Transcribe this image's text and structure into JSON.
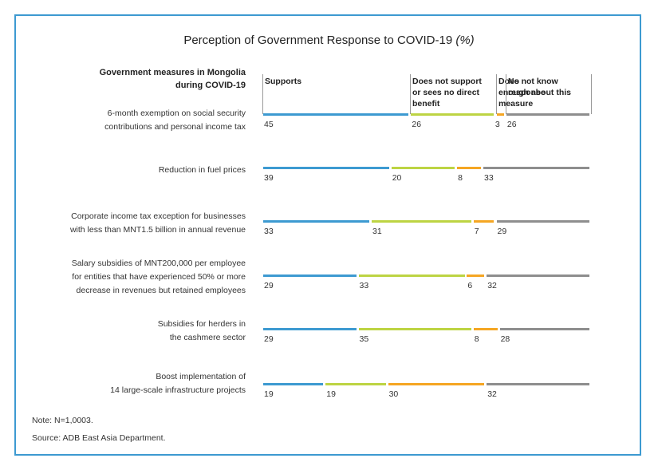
{
  "chart_data": {
    "type": "bar",
    "stacked": true,
    "orientation": "horizontal",
    "title": "Perception of Government Response to COVID-19",
    "title_unit": "(%)",
    "row_header": "Government measures in Mongolia during COVID-19",
    "series": [
      {
        "name": "Supports",
        "color": "#3d9ad1",
        "values": [
          45,
          39,
          33,
          29,
          29,
          19
        ]
      },
      {
        "name": "Does not support or sees no direct benefit",
        "color": "#bdd443",
        "values": [
          26,
          20,
          31,
          33,
          35,
          19
        ]
      },
      {
        "name": "Does not know enough about this measure",
        "color": "#f5a623",
        "values": [
          3,
          8,
          7,
          6,
          8,
          30
        ]
      },
      {
        "name": "No response",
        "color": "#8e8e8e",
        "values": [
          26,
          33,
          29,
          32,
          28,
          32
        ]
      }
    ],
    "column_header_lines": [
      [
        "Supports"
      ],
      [
        "Does not support",
        "or sees no direct",
        "benefit"
      ],
      [
        "Does not know",
        "enough about this",
        "measure"
      ],
      [
        "No",
        "response"
      ]
    ],
    "categories": [
      [
        "6-month exemption on social security",
        "contributions and personal income tax"
      ],
      [
        "Reduction in fuel prices"
      ],
      [
        "Corporate income tax exception for businesses",
        "with less than MNT1.5 billion in annual revenue"
      ],
      [
        "Salary subsidies of MNT200,000 per employee",
        "for entities that have experienced 50% or more",
        "decrease in revenues but retained employees"
      ],
      [
        "Subsidies for herders in",
        "the cashmere sector"
      ],
      [
        "Boost implementation of",
        "14 large-scale infrastructure projects"
      ]
    ]
  },
  "notes": {
    "note": "Note: N=1,0003.",
    "source": "Source: ADB East Asia Department."
  }
}
